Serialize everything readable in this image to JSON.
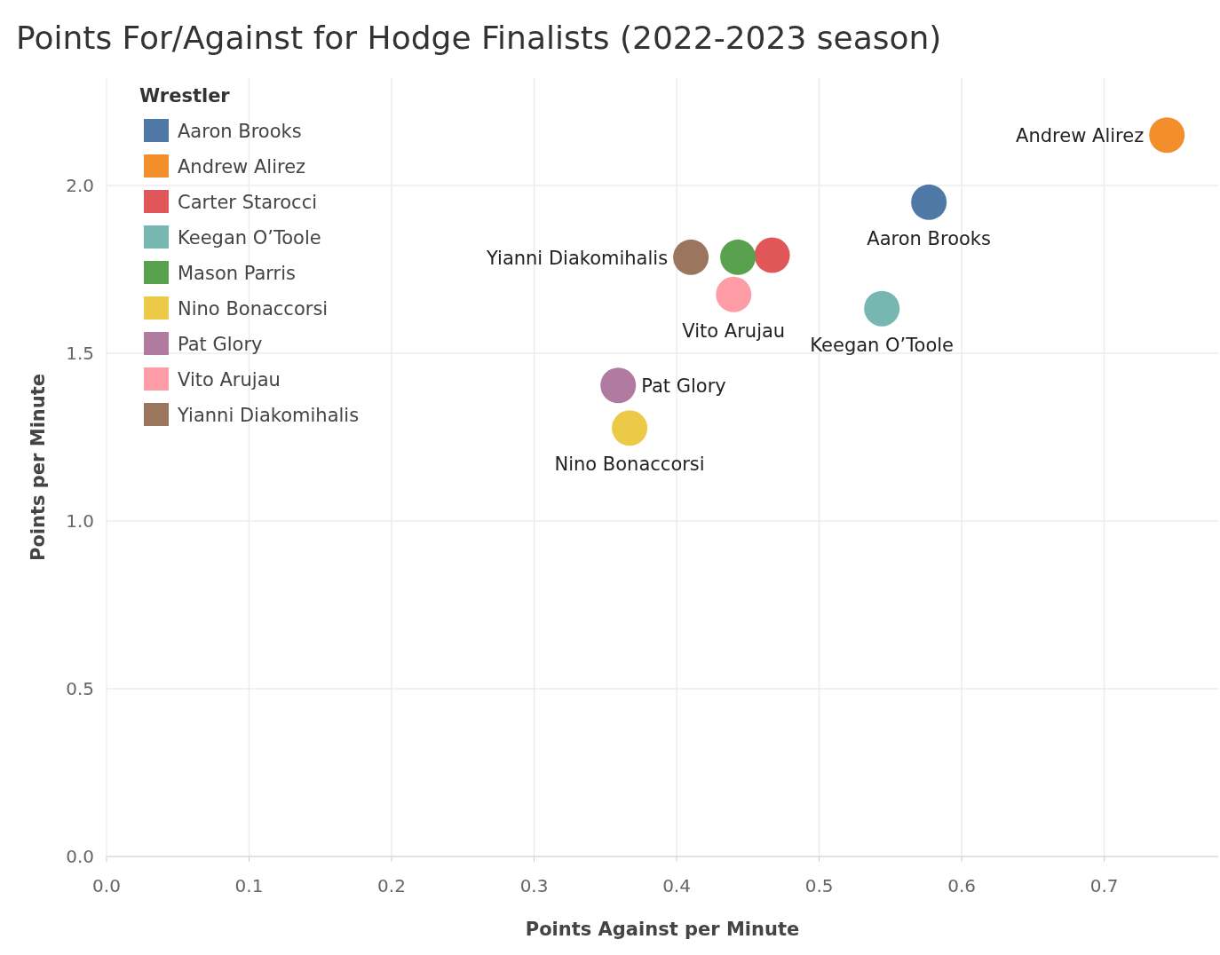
{
  "chart_data": {
    "type": "scatter",
    "title": "Points For/Against for Hodge Finalists (2022-2023 season)",
    "xlabel": "Points Against per Minute",
    "ylabel": "Points per Minute",
    "legend_title": "Wrestler",
    "legend": "top left",
    "grid": true,
    "marker": "circle",
    "xlim": [
      0,
      0.78
    ],
    "ylim": [
      0,
      2.32
    ],
    "xticks": [
      {
        "value": 0,
        "label": "0.0"
      },
      {
        "value": 0.1,
        "label": "0.1"
      },
      {
        "value": 0.2,
        "label": "0.2"
      },
      {
        "value": 0.3,
        "label": "0.3"
      },
      {
        "value": 0.4,
        "label": "0.4"
      },
      {
        "value": 0.5,
        "label": "0.5"
      },
      {
        "value": 0.6,
        "label": "0.6"
      },
      {
        "value": 0.7,
        "label": "0.7"
      }
    ],
    "yticks": [
      {
        "value": 0,
        "label": "0.0"
      },
      {
        "value": 0.5,
        "label": "0.5"
      },
      {
        "value": 1,
        "label": "1.0"
      },
      {
        "value": 1.5,
        "label": "1.5"
      },
      {
        "value": 2,
        "label": "2.0"
      }
    ],
    "series": [
      {
        "name": "Aaron Brooks",
        "color": "#4e79a7",
        "x": [
          0.577
        ],
        "values": [
          1.95
        ]
      },
      {
        "name": "Andrew Alirez",
        "color": "#f28e2b",
        "x": [
          0.744
        ],
        "values": [
          2.15
        ]
      },
      {
        "name": "Carter Starocci",
        "color": "#e15759",
        "x": [
          0.467
        ],
        "values": [
          1.792
        ]
      },
      {
        "name": "Keegan O’Toole",
        "color": "#76b7b2",
        "x": [
          0.544
        ],
        "values": [
          1.633
        ]
      },
      {
        "name": "Mason Parris",
        "color": "#59a14f",
        "x": [
          0.443
        ],
        "values": [
          1.786
        ]
      },
      {
        "name": "Nino Bonaccorsi",
        "color": "#edc948",
        "x": [
          0.367
        ],
        "values": [
          1.277
        ]
      },
      {
        "name": "Pat Glory",
        "color": "#b07aa1",
        "x": [
          0.359
        ],
        "values": [
          1.404
        ]
      },
      {
        "name": "Vito Arujau",
        "color": "#ff9da7",
        "x": [
          0.44
        ],
        "values": [
          1.675
        ]
      },
      {
        "name": "Yianni Diakomihalis",
        "color": "#9c755f",
        "x": [
          0.41
        ],
        "values": [
          1.786
        ]
      }
    ]
  }
}
